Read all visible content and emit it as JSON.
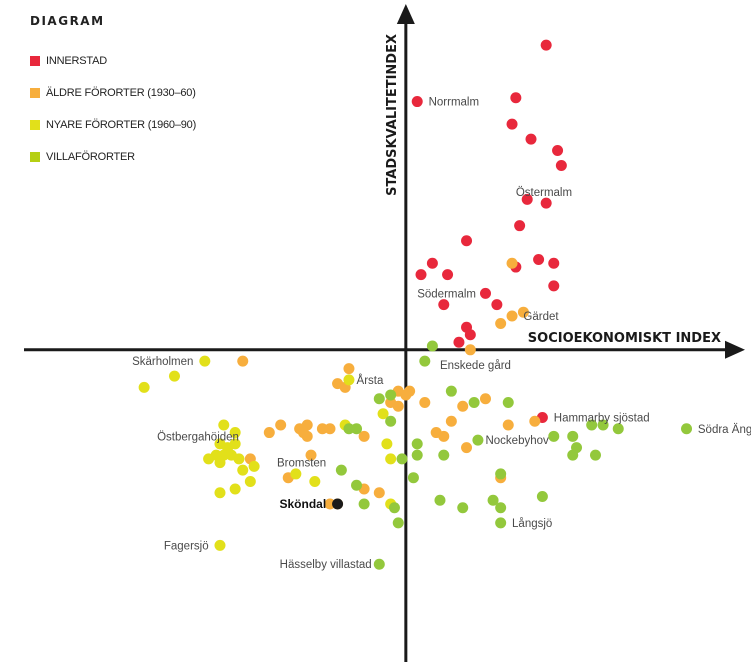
{
  "legend": {
    "title": "DIAGRAM",
    "items": [
      {
        "label": "INNERSTAD",
        "color": "#e8283c"
      },
      {
        "label": "ÄLDRE FÖRORTER  (1930–60)",
        "color": "#f7ae3d"
      },
      {
        "label": "NYARE FÖRORTER (1960–90)",
        "color": "#e2e01a"
      },
      {
        "label": "VILLAFÖRORTER",
        "color": "#b5cf13"
      }
    ]
  },
  "chart_data": {
    "type": "scatter",
    "xlabel": "SOCIOEKONOMISKT INDEX",
    "ylabel": "STADSKVALITETINDEX",
    "xlim": [
      -10.7,
      9.1
    ],
    "ylim": [
      -8.3,
      9.3
    ],
    "grid": false,
    "legend_position": "top-left",
    "series": [
      {
        "name": "INNERSTAD",
        "color": "#e8283c",
        "points": [
          [
            3.7,
            8.1
          ],
          [
            0.3,
            6.6
          ],
          [
            2.9,
            6.7
          ],
          [
            2.8,
            6.0
          ],
          [
            3.3,
            5.6
          ],
          [
            4.0,
            5.3
          ],
          [
            4.1,
            4.9
          ],
          [
            3.2,
            4.0
          ],
          [
            3.7,
            3.9
          ],
          [
            3.0,
            3.3
          ],
          [
            1.6,
            2.9
          ],
          [
            0.7,
            2.3
          ],
          [
            0.4,
            2.0
          ],
          [
            1.1,
            2.0
          ],
          [
            3.5,
            2.4
          ],
          [
            3.9,
            2.3
          ],
          [
            2.9,
            2.2
          ],
          [
            3.9,
            1.7
          ],
          [
            2.1,
            1.5
          ],
          [
            2.4,
            1.2
          ],
          [
            1.0,
            1.2
          ],
          [
            1.6,
            0.6
          ],
          [
            1.7,
            0.4
          ],
          [
            1.4,
            0.2
          ],
          [
            3.6,
            -1.8
          ]
        ]
      },
      {
        "name": "ÄLDRE FÖRORTER  (1930–60)",
        "color": "#f7ae3d",
        "points": [
          [
            -4.3,
            -0.3
          ],
          [
            -1.5,
            -0.5
          ],
          [
            -1.8,
            -0.9
          ],
          [
            -1.6,
            -1.0
          ],
          [
            -0.2,
            -1.1
          ],
          [
            0.1,
            -1.1
          ],
          [
            0.0,
            -1.2
          ],
          [
            -0.4,
            -1.4
          ],
          [
            -0.2,
            -1.5
          ],
          [
            0.5,
            -1.4
          ],
          [
            1.5,
            -1.5
          ],
          [
            2.1,
            -1.3
          ],
          [
            -2.6,
            -2.0
          ],
          [
            -2.2,
            -2.1
          ],
          [
            -2.0,
            -2.1
          ],
          [
            -3.3,
            -2.0
          ],
          [
            -2.8,
            -2.1
          ],
          [
            -2.6,
            -2.3
          ],
          [
            -3.6,
            -2.2
          ],
          [
            -2.7,
            -2.2
          ],
          [
            -1.1,
            -2.3
          ],
          [
            0.8,
            -2.2
          ],
          [
            1.0,
            -2.3
          ],
          [
            1.2,
            -1.9
          ],
          [
            2.7,
            -2.0
          ],
          [
            3.4,
            -1.9
          ],
          [
            1.6,
            -2.6
          ],
          [
            -2.5,
            -2.8
          ],
          [
            -4.1,
            -2.9
          ],
          [
            -3.1,
            -3.4
          ],
          [
            -1.1,
            -3.7
          ],
          [
            2.5,
            -3.4
          ],
          [
            -1.8,
            -4.1
          ],
          [
            -2.0,
            -4.1
          ],
          [
            -0.7,
            -3.8
          ],
          [
            1.7,
            0.0
          ],
          [
            2.5,
            0.7
          ],
          [
            2.8,
            0.9
          ],
          [
            3.1,
            1.0
          ],
          [
            2.8,
            2.3
          ]
        ]
      },
      {
        "name": "NYARE FÖRORTER (1960–90)",
        "color": "#e2e01a",
        "points": [
          [
            -5.3,
            -0.3
          ],
          [
            -6.1,
            -0.7
          ],
          [
            -6.9,
            -1.0
          ],
          [
            -4.8,
            -2.0
          ],
          [
            -4.5,
            -2.2
          ],
          [
            -4.5,
            -2.5
          ],
          [
            -4.9,
            -2.5
          ],
          [
            -4.7,
            -2.7
          ],
          [
            -4.8,
            -2.8
          ],
          [
            -5.0,
            -2.8
          ],
          [
            -4.4,
            -2.9
          ],
          [
            -4.7,
            -2.6
          ],
          [
            -4.6,
            -2.8
          ],
          [
            -5.2,
            -2.9
          ],
          [
            -4.9,
            -3.0
          ],
          [
            -4.3,
            -3.2
          ],
          [
            -4.1,
            -3.5
          ],
          [
            -4.5,
            -3.7
          ],
          [
            -2.4,
            -3.5
          ],
          [
            -2.9,
            -3.3
          ],
          [
            -4.0,
            -3.1
          ],
          [
            -4.9,
            -3.8
          ],
          [
            -1.5,
            -0.8
          ],
          [
            -0.5,
            -2.5
          ],
          [
            -0.4,
            -2.9
          ],
          [
            -0.4,
            -4.1
          ],
          [
            -4.9,
            -5.2
          ],
          [
            -1.6,
            -2.0
          ],
          [
            -0.6,
            -1.7
          ]
        ]
      },
      {
        "name": "VILLAFÖRORTER",
        "color": "#93c83c",
        "points": [
          [
            0.7,
            0.1
          ],
          [
            0.5,
            -0.3
          ],
          [
            -0.7,
            -1.3
          ],
          [
            -0.4,
            -1.2
          ],
          [
            1.2,
            -1.1
          ],
          [
            1.8,
            -1.4
          ],
          [
            2.7,
            -1.4
          ],
          [
            -1.5,
            -2.1
          ],
          [
            -1.3,
            -2.1
          ],
          [
            -0.4,
            -1.9
          ],
          [
            0.3,
            -2.5
          ],
          [
            1.9,
            -2.4
          ],
          [
            3.9,
            -2.3
          ],
          [
            4.4,
            -2.3
          ],
          [
            4.9,
            -2.0
          ],
          [
            5.2,
            -2.0
          ],
          [
            5.6,
            -2.1
          ],
          [
            7.4,
            -2.1
          ],
          [
            4.5,
            -2.6
          ],
          [
            4.4,
            -2.8
          ],
          [
            5.0,
            -2.8
          ],
          [
            0.3,
            -2.8
          ],
          [
            1.0,
            -2.8
          ],
          [
            -0.1,
            -2.9
          ],
          [
            -1.7,
            -3.2
          ],
          [
            -1.3,
            -3.6
          ],
          [
            0.2,
            -3.4
          ],
          [
            2.5,
            -3.3
          ],
          [
            -1.1,
            -4.1
          ],
          [
            -0.3,
            -4.2
          ],
          [
            0.9,
            -4.0
          ],
          [
            1.5,
            -4.2
          ],
          [
            2.3,
            -4.0
          ],
          [
            2.5,
            -4.2
          ],
          [
            3.6,
            -3.9
          ],
          [
            -0.2,
            -4.6
          ],
          [
            2.5,
            -4.6
          ],
          [
            -0.7,
            -5.7
          ]
        ]
      },
      {
        "name": "Sköndal",
        "color": "#1a1a1a",
        "points": [
          [
            -1.8,
            -4.1
          ]
        ]
      }
    ],
    "annotations": [
      {
        "text": "Norrmalm",
        "x": 0.6,
        "y": 6.6,
        "anchor": "start"
      },
      {
        "text": "Östermalm",
        "x": 2.9,
        "y": 4.2,
        "anchor": "start"
      },
      {
        "text": "Södermalm",
        "x": 0.3,
        "y": 1.5,
        "anchor": "start"
      },
      {
        "text": "Gärdet",
        "x": 3.1,
        "y": 0.9,
        "anchor": "start"
      },
      {
        "text": "Skärholmen",
        "x": -5.6,
        "y": -0.3,
        "anchor": "end"
      },
      {
        "text": "Årsta",
        "x": -1.3,
        "y": -0.8,
        "anchor": "start"
      },
      {
        "text": "Enskede gård",
        "x": 0.9,
        "y": -0.4,
        "anchor": "start"
      },
      {
        "text": "Hammarby sjöstad",
        "x": 3.9,
        "y": -1.8,
        "anchor": "start"
      },
      {
        "text": "Östbergahöjden",
        "x": -4.4,
        "y": -2.3,
        "anchor": "end"
      },
      {
        "text": "Nockebyhov",
        "x": 2.1,
        "y": -2.4,
        "anchor": "start"
      },
      {
        "text": "Södra Ängby",
        "x": 7.7,
        "y": -2.1,
        "anchor": "start"
      },
      {
        "text": "Bromsten",
        "x": -2.1,
        "y": -3.0,
        "anchor": "end"
      },
      {
        "text": "Sköndal",
        "x": -2.1,
        "y": -4.1,
        "anchor": "end",
        "bold": true
      },
      {
        "text": "Långsjö",
        "x": 2.8,
        "y": -4.6,
        "anchor": "start"
      },
      {
        "text": "Fagersjö",
        "x": -5.2,
        "y": -5.2,
        "anchor": "end"
      },
      {
        "text": "Hässelby villastad",
        "x": -0.9,
        "y": -5.7,
        "anchor": "end"
      }
    ]
  }
}
